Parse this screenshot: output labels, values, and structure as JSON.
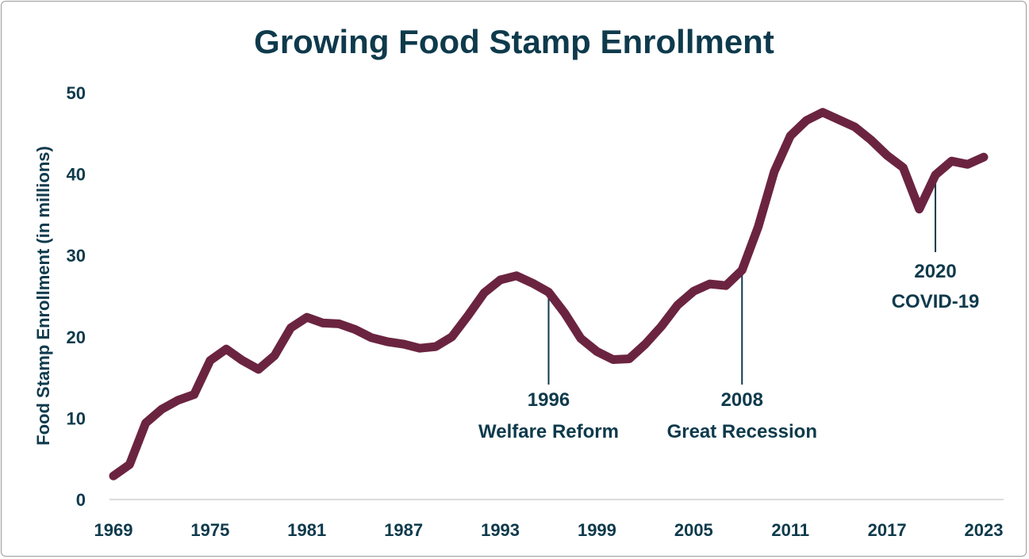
{
  "chart_data": {
    "type": "line",
    "title": "Growing Food Stamp Enrollment",
    "xlabel": "",
    "ylabel": "Food Stamp Enrollment (in millions)",
    "xlim": [
      1969,
      2023
    ],
    "ylim": [
      0,
      50
    ],
    "x_ticks": [
      "1969",
      "1975",
      "1981",
      "1987",
      "1993",
      "1999",
      "2005",
      "2011",
      "2017",
      "2023"
    ],
    "y_ticks": [
      "0",
      "10",
      "20",
      "30",
      "40",
      "50"
    ],
    "grid": false,
    "line_color": "#6b2440",
    "text_color": "#0e3a4c",
    "x": [
      1969,
      1970,
      1971,
      1972,
      1973,
      1974,
      1975,
      1976,
      1977,
      1978,
      1979,
      1980,
      1981,
      1982,
      1983,
      1984,
      1985,
      1986,
      1987,
      1988,
      1989,
      1990,
      1991,
      1992,
      1993,
      1994,
      1995,
      1996,
      1997,
      1998,
      1999,
      2000,
      2001,
      2002,
      2003,
      2004,
      2005,
      2006,
      2007,
      2008,
      2009,
      2010,
      2011,
      2012,
      2013,
      2014,
      2015,
      2016,
      2017,
      2018,
      2019,
      2020,
      2021,
      2022,
      2023
    ],
    "values": [
      2.9,
      4.3,
      9.4,
      11.1,
      12.2,
      12.9,
      17.1,
      18.5,
      17.1,
      16.0,
      17.7,
      21.1,
      22.4,
      21.7,
      21.6,
      20.9,
      19.9,
      19.4,
      19.1,
      18.6,
      18.8,
      20.0,
      22.6,
      25.4,
      27.0,
      27.5,
      26.6,
      25.5,
      22.9,
      19.8,
      18.2,
      17.2,
      17.3,
      19.1,
      21.3,
      23.9,
      25.6,
      26.5,
      26.3,
      28.2,
      33.5,
      40.3,
      44.7,
      46.6,
      47.6,
      46.7,
      45.8,
      44.2,
      42.3,
      40.8,
      35.7,
      39.9,
      41.6,
      41.2,
      42.1
    ],
    "annotations": [
      {
        "x": 1996,
        "lines": [
          "1996",
          "Welfare Reform"
        ]
      },
      {
        "x": 2008,
        "lines": [
          "2008",
          "Great Recession"
        ]
      },
      {
        "x": 2020,
        "lines": [
          "2020",
          "COVID-19"
        ]
      }
    ]
  }
}
